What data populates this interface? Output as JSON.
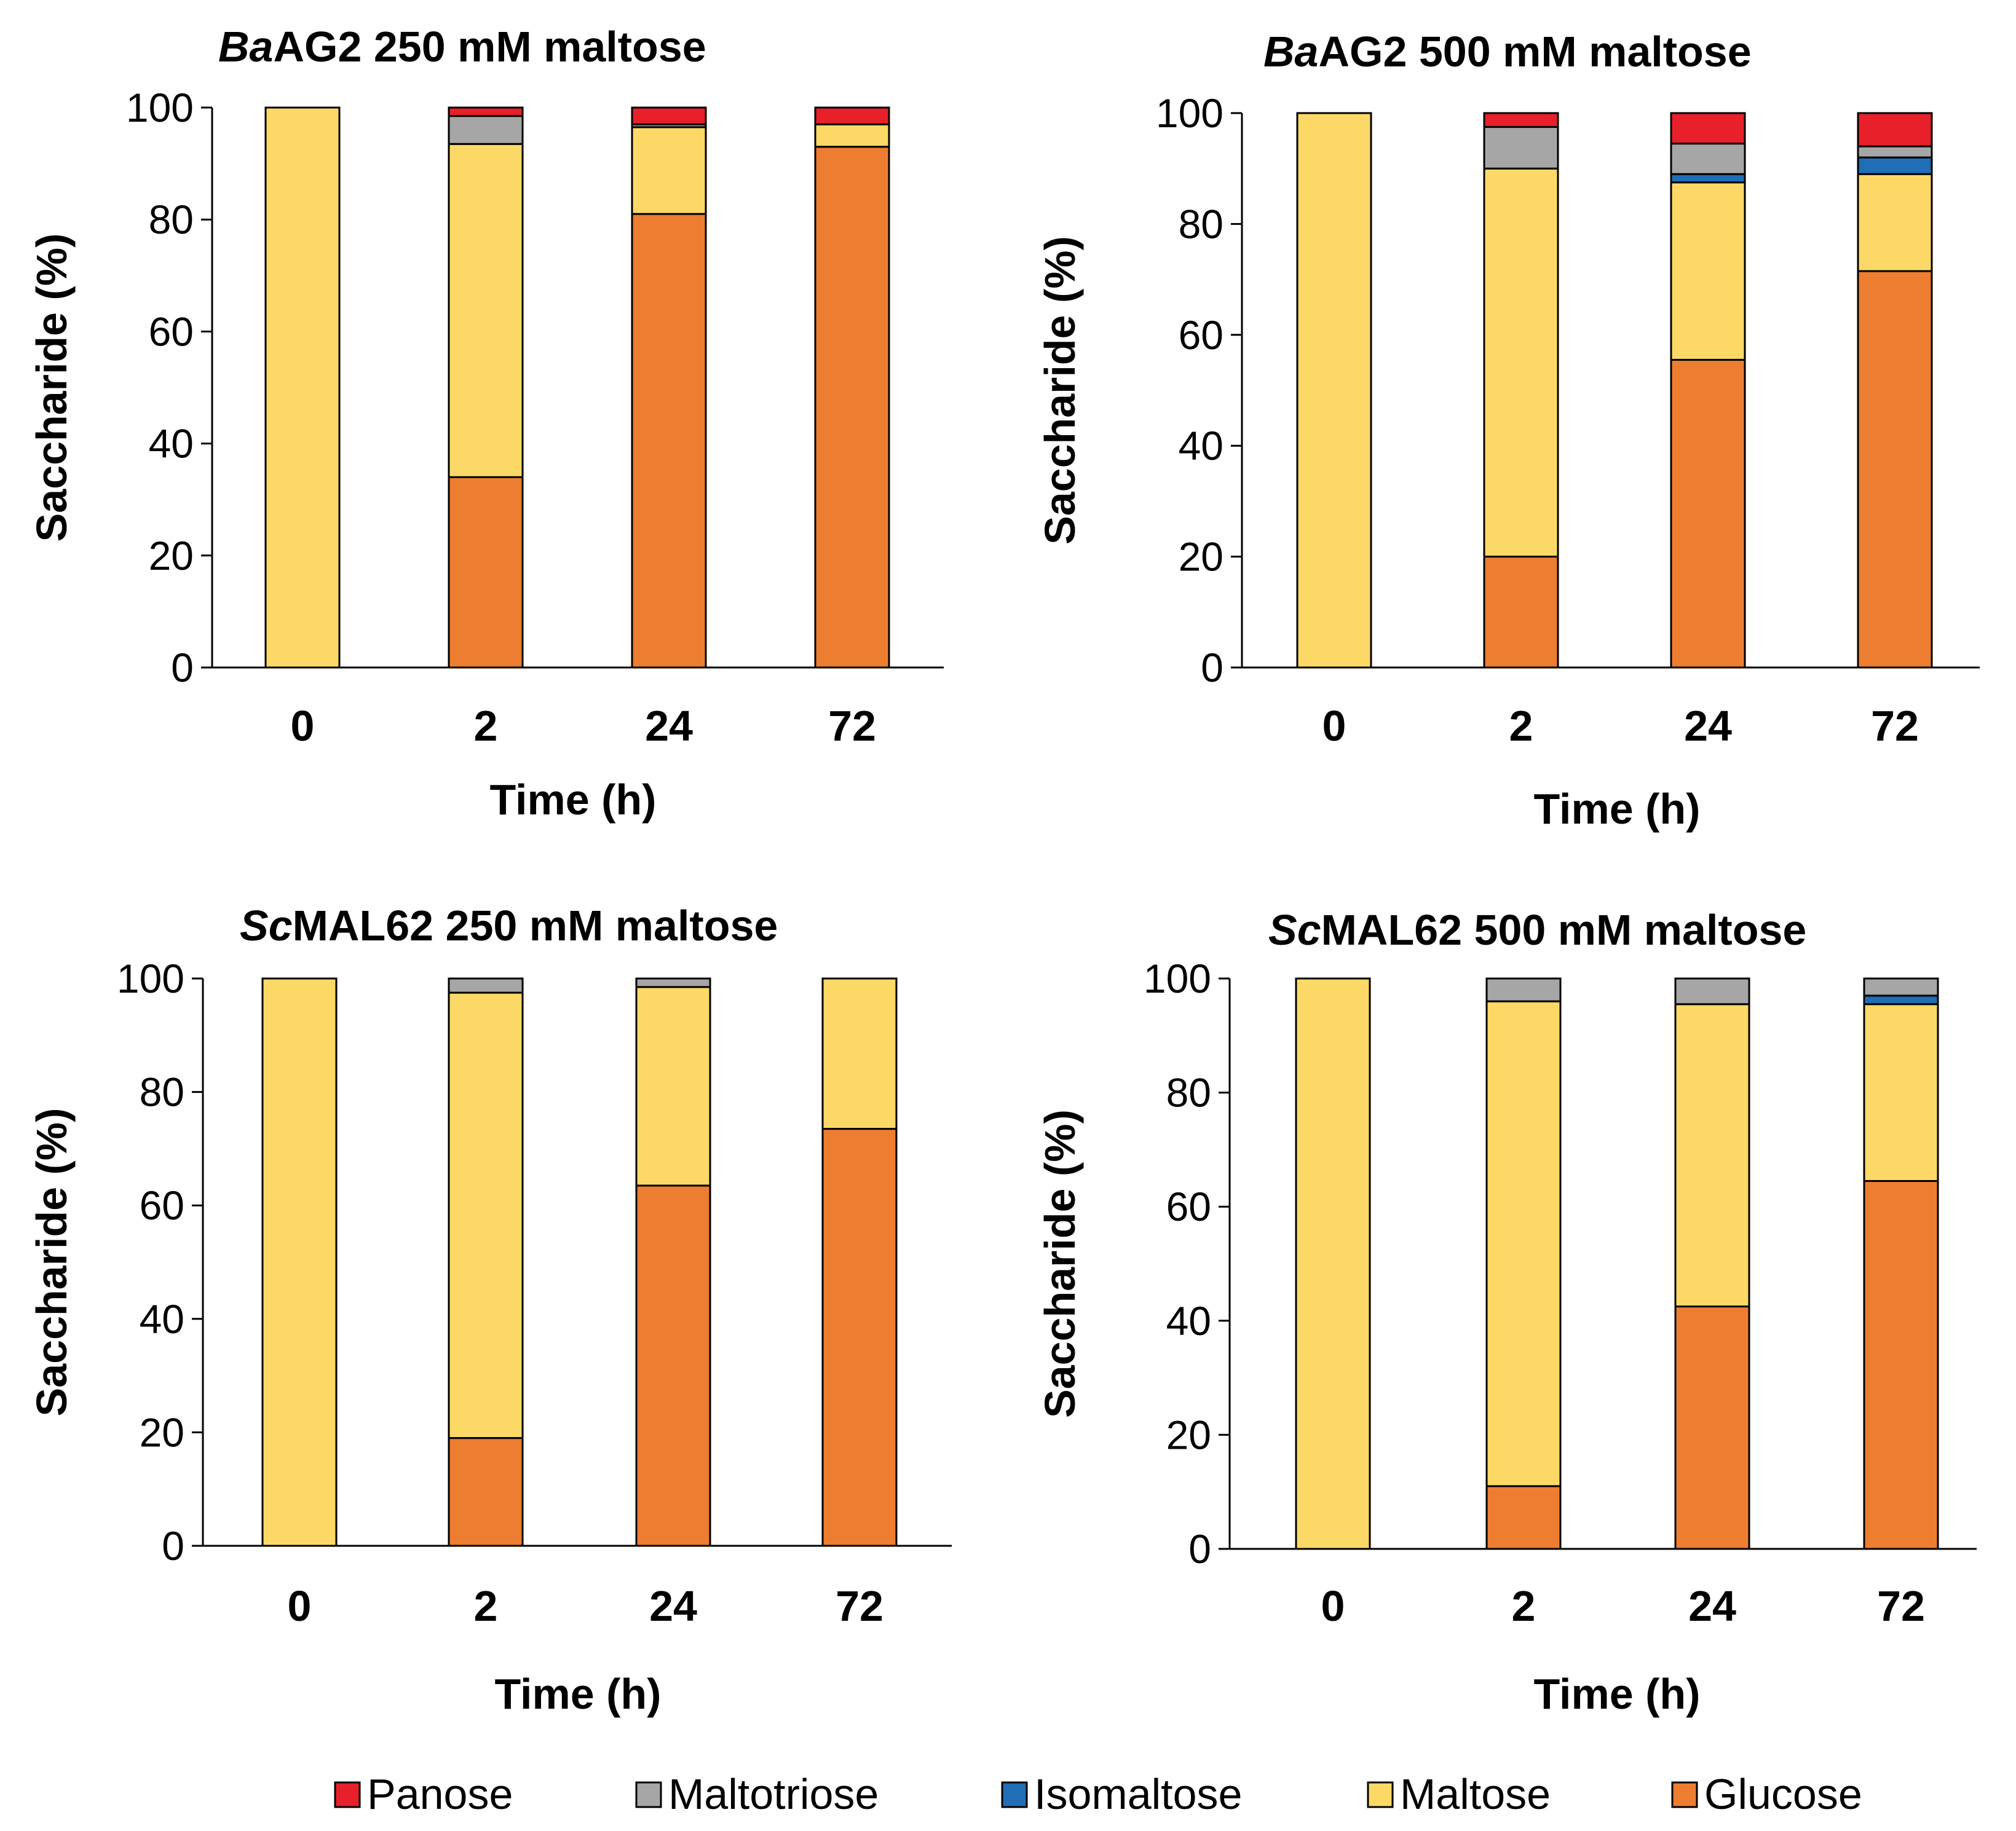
{
  "colors": {
    "Panose": "#e8202a",
    "Maltotriose": "#a6a6a6",
    "Isomaltose": "#1f6eb6",
    "Maltose": "#fcd966",
    "Glucose": "#ed7d31"
  },
  "legend": {
    "items": [
      "Panose",
      "Maltotriose",
      "Isomaltose",
      "Maltose",
      "Glucose"
    ]
  },
  "chart_data": [
    {
      "type": "bar",
      "stacked": true,
      "title_italic": "Ba",
      "title_rest": "AG2 250 mM maltose",
      "xlabel": "Time (h)",
      "ylabel": "Saccharide (%)",
      "ylim": [
        0,
        100
      ],
      "yticks": [
        "0",
        "20",
        "40",
        "60",
        "80",
        "100"
      ],
      "categories": [
        "0",
        "2",
        "24",
        "72"
      ],
      "series": [
        {
          "name": "Glucose",
          "values": [
            0,
            34,
            81,
            93
          ]
        },
        {
          "name": "Maltose",
          "values": [
            100,
            59.5,
            15.5,
            4
          ]
        },
        {
          "name": "Isomaltose",
          "values": [
            0,
            0,
            0,
            0
          ]
        },
        {
          "name": "Maltotriose",
          "values": [
            0,
            5,
            0.5,
            0
          ]
        },
        {
          "name": "Panose",
          "values": [
            0,
            1.5,
            3,
            3
          ]
        }
      ]
    },
    {
      "type": "bar",
      "stacked": true,
      "title_italic": "Ba",
      "title_rest": "AG2 500 mM maltose",
      "xlabel": "Time (h)",
      "ylabel": "Saccharide (%)",
      "ylim": [
        0,
        100
      ],
      "yticks": [
        "0",
        "20",
        "40",
        "60",
        "80",
        "100"
      ],
      "categories": [
        "0",
        "2",
        "24",
        "72"
      ],
      "series": [
        {
          "name": "Glucose",
          "values": [
            0,
            20,
            55.5,
            71.5
          ]
        },
        {
          "name": "Maltose",
          "values": [
            100,
            70,
            32,
            17.5
          ]
        },
        {
          "name": "Isomaltose",
          "values": [
            0,
            0,
            1.5,
            3
          ]
        },
        {
          "name": "Maltotriose",
          "values": [
            0,
            7.5,
            5.5,
            2
          ]
        },
        {
          "name": "Panose",
          "values": [
            0,
            2.5,
            5.5,
            6
          ]
        }
      ]
    },
    {
      "type": "bar",
      "stacked": true,
      "title_italic": "Sc",
      "title_rest": "MAL62 250 mM maltose",
      "xlabel": "Time (h)",
      "ylabel": "Saccharide (%)",
      "ylim": [
        0,
        100
      ],
      "yticks": [
        "0",
        "20",
        "40",
        "60",
        "80",
        "100"
      ],
      "categories": [
        "0",
        "2",
        "24",
        "72"
      ],
      "series": [
        {
          "name": "Glucose",
          "values": [
            0,
            19,
            63.5,
            73.5
          ]
        },
        {
          "name": "Maltose",
          "values": [
            100,
            78.5,
            35,
            26.5
          ]
        },
        {
          "name": "Isomaltose",
          "values": [
            0,
            0,
            0,
            0
          ]
        },
        {
          "name": "Maltotriose",
          "values": [
            0,
            2.5,
            1.5,
            0
          ]
        },
        {
          "name": "Panose",
          "values": [
            0,
            0,
            0,
            0
          ]
        }
      ]
    },
    {
      "type": "bar",
      "stacked": true,
      "title_italic": "Sc",
      "title_rest": "MAL62 500 mM maltose",
      "xlabel": "Time (h)",
      "ylabel": "Saccharide (%)",
      "ylim": [
        0,
        100
      ],
      "yticks": [
        "0",
        "20",
        "40",
        "60",
        "80",
        "100"
      ],
      "categories": [
        "0",
        "2",
        "24",
        "72"
      ],
      "series": [
        {
          "name": "Glucose",
          "values": [
            0,
            11,
            42.5,
            64.5
          ]
        },
        {
          "name": "Maltose",
          "values": [
            100,
            85,
            53,
            31
          ]
        },
        {
          "name": "Isomaltose",
          "values": [
            0,
            0,
            0,
            1.5
          ]
        },
        {
          "name": "Maltotriose",
          "values": [
            0,
            4,
            4.5,
            3
          ]
        },
        {
          "name": "Panose",
          "values": [
            0,
            0,
            0,
            0
          ]
        }
      ]
    }
  ]
}
